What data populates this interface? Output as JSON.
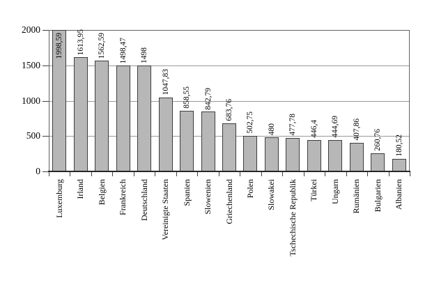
{
  "chart_data": {
    "type": "bar",
    "title": "",
    "xlabel": "",
    "ylabel": "",
    "categories": [
      "Luxemburg",
      "Irland",
      "Belgien",
      "Frankreich",
      "Deutschland",
      "Vereinigte Staaten",
      "Spanien",
      "Slowenien",
      "Griechenland",
      "Polen",
      "Slowakei",
      "Tschechische Republik",
      "Türkei",
      "Ungarn",
      "Rumänien",
      "Bulgarien",
      "Albanien"
    ],
    "values": [
      1998.59,
      1613.95,
      1562.59,
      1498.47,
      1498,
      1047.83,
      858.55,
      842.79,
      683.76,
      502.75,
      480,
      477.78,
      446.4,
      444.69,
      407.86,
      260.76,
      180.52
    ],
    "value_labels": [
      "1998,59",
      "1613,95",
      "1562,59",
      "1498,47",
      "1498",
      "1047,83",
      "858,55",
      "842,79",
      "683,76",
      "502,75",
      "480",
      "477,78",
      "446,4",
      "444,69",
      "407,86",
      "260,76",
      "180,52"
    ],
    "y_ticks": [
      "2000",
      "1500",
      "1000",
      "500",
      "0"
    ],
    "y_tick_values": [
      2000,
      1500,
      1000,
      500,
      0
    ],
    "gridline_values": [
      1500,
      1000,
      500
    ],
    "ylim": [
      0,
      2000
    ],
    "grid": true,
    "legend": false,
    "colors": {
      "bar_fill": "#b7b7b7",
      "bar_border": "#3d3d3d",
      "gridline": "#999999",
      "plot_border": "#606060",
      "axis_line": "#262626",
      "tick": "#404040",
      "text": "#000000"
    }
  }
}
